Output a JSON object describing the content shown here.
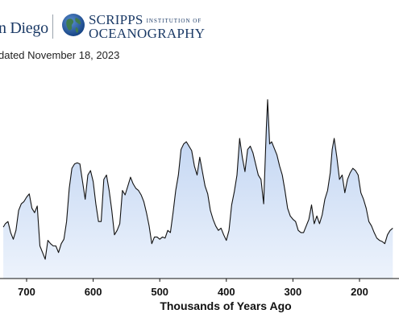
{
  "header": {
    "ucsd_text": "n Diego",
    "scripps_big": "SCRIPPS",
    "scripps_small": "INSTITUTION OF",
    "scripps_line2": "OCEANOGRAPHY",
    "updated": "dated November 18, 2023"
  },
  "colors": {
    "line": "#111111",
    "fill_top": "#b9cff0",
    "fill_bottom": "#edf3fc",
    "brand": "#1b3a66"
  },
  "chart_data": {
    "type": "area",
    "title": "",
    "xlabel": "Thousands of Years Ago",
    "ylabel": "",
    "x_reversed": true,
    "xlim": [
      735,
      150
    ],
    "x_ticks": [
      700,
      600,
      500,
      400,
      300,
      200
    ],
    "grid": false,
    "series": [
      {
        "x": [
          735,
          732,
          728,
          724,
          720,
          716,
          712,
          708,
          704,
          700,
          696,
          692,
          688,
          684,
          680,
          676,
          672,
          668,
          664,
          660,
          656,
          652,
          648,
          644,
          640,
          636,
          632,
          628,
          624,
          620,
          616,
          612,
          608,
          604,
          600,
          596,
          592,
          588,
          584,
          580,
          576,
          572,
          568,
          564,
          560,
          556,
          552,
          548,
          544,
          540,
          536,
          532,
          528,
          524,
          520,
          516,
          512,
          508,
          504,
          500,
          496,
          492,
          488,
          484,
          480,
          476,
          472,
          468,
          464,
          460,
          456,
          452,
          448,
          444,
          440,
          436,
          432,
          428,
          424,
          420,
          416,
          412,
          408,
          404,
          400,
          396,
          392,
          388,
          384,
          380,
          376,
          372,
          368,
          364,
          360,
          356,
          352,
          348,
          344,
          340,
          338,
          335,
          332,
          328,
          324,
          320,
          316,
          312,
          308,
          304,
          300,
          296,
          292,
          288,
          284,
          280,
          276,
          272,
          268,
          264,
          260,
          256,
          252,
          248,
          244,
          241,
          238,
          234,
          230,
          226,
          222,
          218,
          214,
          210,
          206,
          202,
          198,
          194,
          190,
          186,
          182,
          178,
          174,
          170,
          166,
          162,
          158,
          154,
          150
        ],
        "y": [
          215,
          218,
          220,
          210,
          204,
          212,
          230,
          236,
          238,
          242,
          245,
          232,
          228,
          234,
          198,
          192,
          186,
          203,
          200,
          198,
          198,
          192,
          200,
          204,
          220,
          250,
          268,
          272,
          273,
          272,
          256,
          240,
          262,
          266,
          256,
          236,
          220,
          220,
          258,
          262,
          248,
          230,
          208,
          212,
          218,
          248,
          244,
          252,
          260,
          254,
          250,
          248,
          244,
          238,
          228,
          216,
          200,
          206,
          206,
          204,
          206,
          205,
          212,
          210,
          228,
          248,
          262,
          285,
          290,
          292,
          288,
          284,
          270,
          262,
          278,
          265,
          252,
          245,
          230,
          222,
          216,
          212,
          214,
          208,
          203,
          212,
          235,
          247,
          262,
          295,
          278,
          265,
          285,
          288,
          282,
          272,
          262,
          258,
          236,
          304,
          330,
          290,
          292,
          286,
          280,
          270,
          262,
          248,
          232,
          225,
          222,
          220,
          212,
          210,
          210,
          216,
          222,
          235,
          218,
          225,
          218,
          226,
          240,
          248,
          264,
          285,
          295,
          278,
          258,
          262,
          246,
          258,
          264,
          268,
          266,
          262,
          246,
          240,
          232,
          220,
          216,
          210,
          205,
          203,
          202,
          200,
          208,
          212,
          214
        ]
      }
    ]
  }
}
